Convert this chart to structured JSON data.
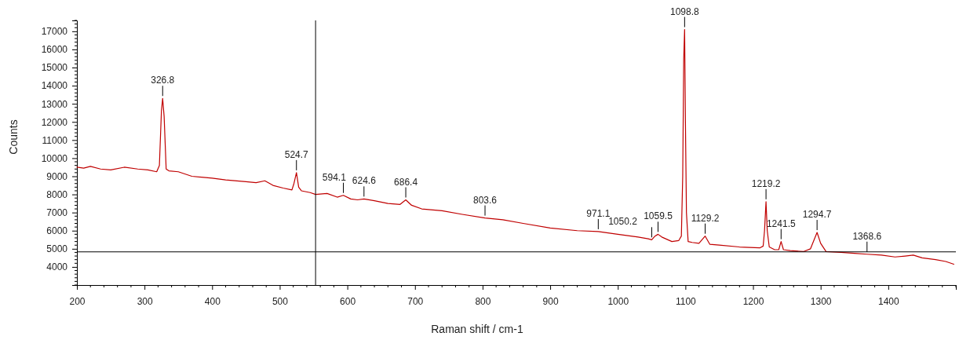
{
  "chart_data": {
    "type": "line",
    "xlabel": "Raman shift / cm-1",
    "ylabel": "Counts",
    "xlim": [
      200,
      1500
    ],
    "xticks": [
      200,
      300,
      400,
      500,
      600,
      700,
      800,
      900,
      1000,
      1100,
      1200,
      1300,
      1400
    ],
    "ylim": [
      3000,
      17600
    ],
    "yticks": [
      4000,
      5000,
      6000,
      7000,
      8000,
      9000,
      10000,
      11000,
      12000,
      13000,
      14000,
      15000,
      16000,
      17000
    ],
    "grid": false,
    "marker": "none",
    "line_style": "solid",
    "series": [
      {
        "color": "#c00000",
        "x": [
          200,
          210,
          220,
          235,
          250,
          270,
          290,
          305,
          318,
          322,
          325,
          326.8,
          329,
          332,
          336,
          350,
          370,
          400,
          420,
          450,
          465,
          478,
          490,
          505,
          518,
          521,
          524.7,
          528,
          532,
          545,
          553,
          570,
          585,
          594.1,
          605,
          615,
          624.6,
          640,
          660,
          678,
          686.4,
          695,
          710,
          740,
          770,
          803.6,
          830,
          860,
          900,
          940,
          971.1,
          1000,
          1030,
          1045,
          1050.2,
          1055,
          1059.5,
          1065,
          1080,
          1090,
          1094,
          1096,
          1097.5,
          1098.8,
          1100,
          1101.5,
          1104,
          1110,
          1120,
          1129.2,
          1136,
          1150,
          1180,
          1210,
          1215,
          1217,
          1219.2,
          1221,
          1224,
          1232,
          1238,
          1241.5,
          1245,
          1255,
          1275,
          1285,
          1294.7,
          1300,
          1308,
          1330,
          1350,
          1368.6,
          1390,
          1410,
          1425,
          1437,
          1450,
          1470,
          1485,
          1497
        ],
        "values": [
          9500,
          9450,
          9550,
          9400,
          9350,
          9500,
          9400,
          9350,
          9250,
          9600,
          12600,
          13300,
          12300,
          9400,
          9300,
          9250,
          9000,
          8900,
          8800,
          8700,
          8650,
          8750,
          8500,
          8350,
          8250,
          8600,
          9200,
          8400,
          8200,
          8100,
          8000,
          8050,
          7850,
          7950,
          7750,
          7700,
          7750,
          7650,
          7500,
          7450,
          7700,
          7400,
          7200,
          7100,
          6900,
          6700,
          6600,
          6400,
          6150,
          6000,
          5950,
          5800,
          5650,
          5550,
          5500,
          5700,
          5800,
          5650,
          5400,
          5450,
          5700,
          9000,
          15500,
          17100,
          12000,
          7000,
          5400,
          5350,
          5300,
          5700,
          5250,
          5200,
          5100,
          5050,
          5150,
          6000,
          7600,
          6000,
          5100,
          4950,
          4950,
          5400,
          4950,
          4900,
          4850,
          5000,
          5900,
          5300,
          4850,
          4800,
          4750,
          4700,
          4650,
          4550,
          4600,
          4650,
          4500,
          4400,
          4300,
          4150
        ]
      }
    ],
    "ref_lines": [
      {
        "axis": "x",
        "value": 553,
        "color": "#000000"
      },
      {
        "axis": "y",
        "value": 4830,
        "color": "#000000"
      }
    ],
    "annotations": [
      {
        "text": "326.8",
        "x": 326.8,
        "y": 13300
      },
      {
        "text": "524.7",
        "x": 524.7,
        "y": 9200
      },
      {
        "text": "594.1",
        "x": 594.1,
        "y": 7950
      },
      {
        "text": "624.6",
        "x": 624.6,
        "y": 7750
      },
      {
        "text": "686.4",
        "x": 686.4,
        "y": 7700
      },
      {
        "text": "803.6",
        "x": 803.6,
        "y": 6700
      },
      {
        "text": "971.1",
        "x": 971.1,
        "y": 5950
      },
      {
        "text": "1050.2",
        "x": 1050.2,
        "y": 5500
      },
      {
        "text": "1059.5",
        "x": 1059.5,
        "y": 5800
      },
      {
        "text": "1098.8",
        "x": 1098.8,
        "y": 17100
      },
      {
        "text": "1129.2",
        "x": 1129.2,
        "y": 5700
      },
      {
        "text": "1219.2",
        "x": 1219.2,
        "y": 7600
      },
      {
        "text": "1241.5",
        "x": 1241.5,
        "y": 5400
      },
      {
        "text": "1294.7",
        "x": 1294.7,
        "y": 5900
      },
      {
        "text": "1368.6",
        "x": 1368.6,
        "y": 4700
      }
    ]
  }
}
